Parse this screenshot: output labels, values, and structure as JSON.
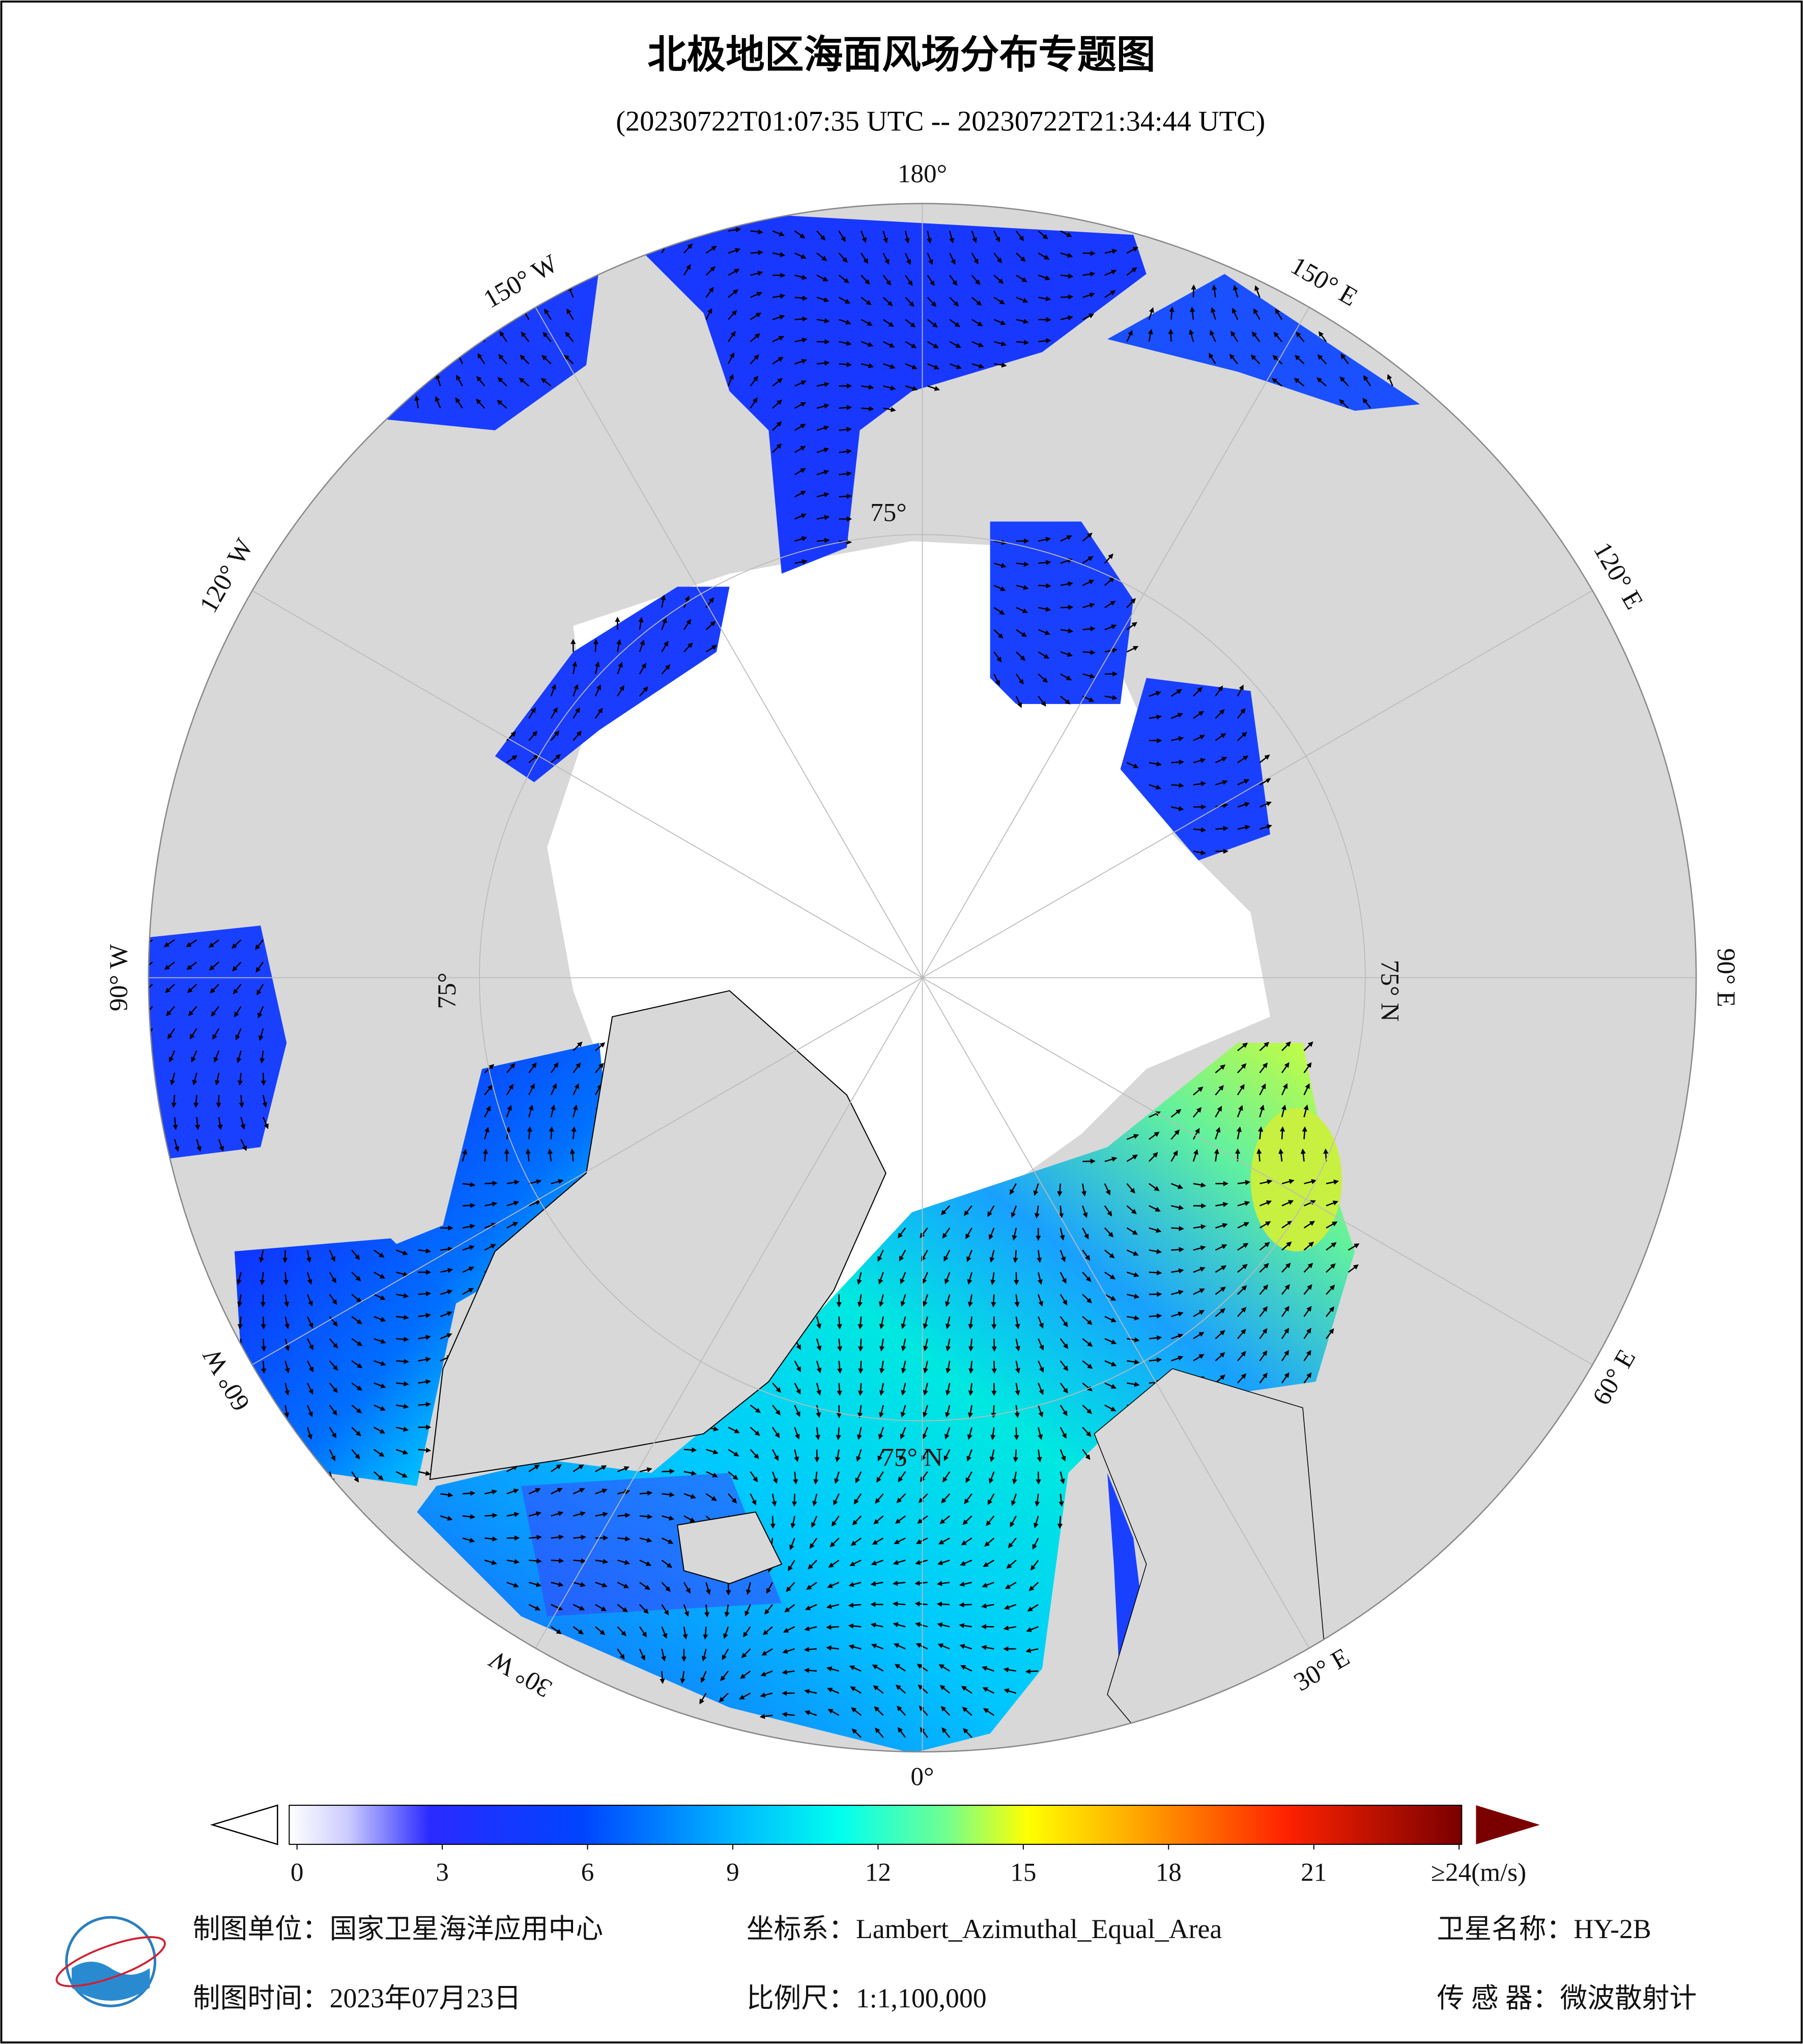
{
  "title": "北极地区海面风场分布专题图",
  "subtitle": "(20230722T01:07:35 UTC -- 20230722T21:34:44 UTC)",
  "map": {
    "longitude_labels": [
      "180°",
      "150° E",
      "120° E",
      "90° E",
      "60° E",
      "30° E",
      "0°",
      "30° W",
      "60° W",
      "90° W",
      "120° W",
      "150° W"
    ],
    "latitude_labels": [
      "75°",
      "75° N",
      "75° N",
      "75°"
    ]
  },
  "colorbar": {
    "lim": [
      0,
      24
    ],
    "ticks": [
      0,
      3,
      6,
      9,
      12,
      15,
      18,
      21,
      {
        "value": 24,
        "label": "≥24(m/s)"
      }
    ]
  },
  "footer": {
    "unit": "制图单位：国家卫星海洋应用中心",
    "projection": "坐标系：Lambert_Azimuthal_Equal_Area",
    "satellite": "卫星名称：HY-2B",
    "time": "制图时间：2023年07月23日",
    "scale": "比例尺：1:1,100,000",
    "sensor": "传 感 器：微波散射计"
  }
}
